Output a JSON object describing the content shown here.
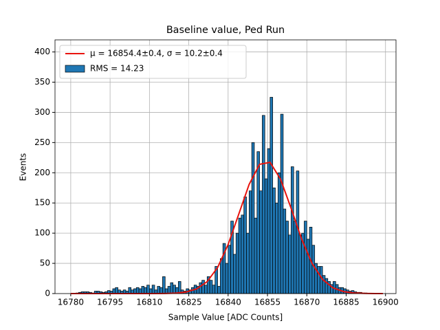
{
  "chart_data": {
    "type": "histogram",
    "title": "Baseline value, Ped Run",
    "x_label": "Sample Value [ADC Counts]",
    "y_label": "Events",
    "bins": [
      16780,
      16781,
      16782,
      16783,
      16784,
      16785,
      16786,
      16787,
      16788,
      16789,
      16790,
      16791,
      16792,
      16793,
      16794,
      16795,
      16796,
      16797,
      16798,
      16799,
      16800,
      16801,
      16802,
      16803,
      16804,
      16805,
      16806,
      16807,
      16808,
      16809,
      16810,
      16811,
      16812,
      16813,
      16814,
      16815,
      16816,
      16817,
      16818,
      16819,
      16820,
      16821,
      16822,
      16823,
      16824,
      16825,
      16826,
      16827,
      16828,
      16829,
      16830,
      16831,
      16832,
      16833,
      16834,
      16835,
      16836,
      16837,
      16838,
      16839,
      16840,
      16841,
      16842,
      16843,
      16844,
      16845,
      16846,
      16847,
      16848,
      16849,
      16850,
      16851,
      16852,
      16853,
      16854,
      16855,
      16856,
      16857,
      16858,
      16859,
      16860,
      16861,
      16862,
      16863,
      16864,
      16865,
      16866,
      16867,
      16868,
      16869,
      16870,
      16871,
      16872,
      16873,
      16874,
      16875,
      16876,
      16877,
      16878,
      16879,
      16880,
      16881,
      16882,
      16883,
      16884,
      16885,
      16886,
      16887,
      16888,
      16889,
      16890,
      16891,
      16892,
      16893,
      16894,
      16895,
      16896,
      16897,
      16898,
      16899,
      16900
    ],
    "values": [
      0,
      0,
      1,
      2,
      3,
      3,
      3,
      2,
      1,
      4,
      4,
      3,
      2,
      3,
      5,
      4,
      8,
      10,
      6,
      4,
      6,
      4,
      10,
      6,
      8,
      10,
      8,
      12,
      10,
      14,
      8,
      14,
      6,
      12,
      10,
      28,
      8,
      12,
      18,
      14,
      10,
      20,
      6,
      4,
      8,
      6,
      10,
      14,
      12,
      18,
      22,
      14,
      28,
      22,
      14,
      45,
      12,
      58,
      83,
      50,
      80,
      120,
      65,
      100,
      125,
      130,
      160,
      100,
      170,
      250,
      125,
      235,
      170,
      295,
      190,
      240,
      325,
      175,
      150,
      200,
      297,
      140,
      120,
      97,
      210,
      120,
      203,
      97,
      100,
      120,
      90,
      110,
      80,
      50,
      45,
      45,
      30,
      25,
      20,
      15,
      20,
      15,
      10,
      10,
      8,
      6,
      4,
      5,
      3,
      2,
      2,
      1,
      1,
      0,
      0,
      0,
      0,
      0,
      0,
      0
    ],
    "name": "RMS = 14.23",
    "color": "#1f77b4",
    "fit": {
      "type": "line",
      "name": "μ = 16854.4±0.4, σ = 10.2±0.4",
      "color": "#e8120c",
      "x": [
        16780,
        16784,
        16788,
        16792,
        16796,
        16800,
        16804,
        16808,
        16812,
        16816,
        16820,
        16824,
        16828,
        16832,
        16836,
        16840,
        16844,
        16848,
        16852,
        16856,
        16860,
        16864,
        16868,
        16872,
        16876,
        16880,
        16884,
        16888,
        16892,
        16896,
        16899
      ],
      "values": [
        0,
        0,
        0,
        0,
        0,
        0,
        0,
        0,
        0,
        0.2,
        0.7,
        2.6,
        7.7,
        19.7,
        43.2,
        81.2,
        130.8,
        180.7,
        214,
        217.3,
        189.2,
        141.3,
        90.4,
        49.7,
        23.4,
        9.4,
        3.3,
        1,
        0.3,
        0,
        0
      ]
    },
    "xlim": [
      16774,
      16904
    ],
    "ylim": [
      0,
      420
    ],
    "xticks": [
      16780,
      16795,
      16810,
      16825,
      16840,
      16855,
      16870,
      16885,
      16900
    ],
    "yticks": [
      0,
      50,
      100,
      150,
      200,
      250,
      300,
      350,
      400
    ],
    "grid": true,
    "legend": "upper left"
  }
}
